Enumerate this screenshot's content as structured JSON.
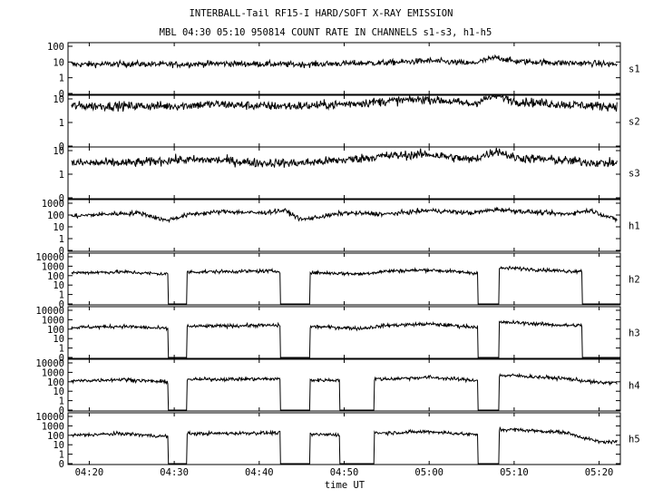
{
  "title": "INTERBALL-Tail RF15-I HARD/SOFT X-RAY EMISSION",
  "subtitle": "MBL 04:30 05:10 950814  COUNT RATE IN CHANNELS s1-s3, h1-h5",
  "xlabel": "time UT",
  "chart_data": {
    "type": "line",
    "title": "INTERBALL-Tail RF15-I HARD/SOFT X-RAY EMISSION",
    "subtitle": "MBL 04:30 05:10 950814  COUNT RATE IN CHANNELS s1-s3, h1-h5",
    "xlabel": "time UT",
    "xlim_minutes": [
      257.5,
      322.5
    ],
    "x_ticks": [
      "04:20",
      "04:30",
      "04:40",
      "04:50",
      "05:00",
      "05:10",
      "05:20"
    ],
    "x_tick_minutes": [
      260,
      270,
      280,
      290,
      300,
      310,
      320
    ],
    "y_scale": "log",
    "panels": [
      {
        "name": "s1",
        "y_ticks": [
          "100",
          "10",
          "1",
          "0"
        ],
        "y_tick_values": [
          100,
          10,
          1,
          0
        ],
        "series": [
          {
            "name": "s1",
            "t": [
              258,
              265,
              270,
              275,
              280,
              285,
              290,
              295,
              300,
              305,
              308,
              310,
              315,
              320,
              322
            ],
            "v": [
              7,
              7.5,
              7,
              8,
              7.5,
              7,
              8,
              9,
              12,
              8,
              20,
              11,
              9,
              8,
              7
            ]
          }
        ]
      },
      {
        "name": "s2",
        "y_ticks": [
          "10",
          "1",
          "0"
        ],
        "y_tick_values": [
          10,
          1,
          0
        ],
        "series": [
          {
            "name": "s2",
            "t": [
              258,
              265,
              270,
              275,
              280,
              285,
              290,
              295,
              300,
              305,
              308,
              310,
              315,
              320,
              322
            ],
            "v": [
              5,
              5,
              5,
              6,
              5,
              5,
              6,
              8,
              10,
              6,
              15,
              8,
              6,
              5,
              5
            ]
          }
        ]
      },
      {
        "name": "s3",
        "y_ticks": [
          "10",
          "1",
          "0"
        ],
        "y_tick_values": [
          10,
          1,
          0
        ],
        "series": [
          {
            "name": "s3",
            "t": [
              258,
              265,
              270,
              275,
              280,
              285,
              290,
              295,
              300,
              305,
              308,
              310,
              315,
              320,
              322
            ],
            "v": [
              3,
              3,
              4,
              4,
              3,
              3,
              4,
              6,
              7,
              4,
              10,
              5,
              4,
              3,
              3
            ]
          }
        ]
      },
      {
        "name": "h1",
        "y_ticks": [
          "1000",
          "100",
          "10",
          "1",
          "0"
        ],
        "y_tick_values": [
          1000,
          100,
          10,
          1,
          0
        ],
        "series": [
          {
            "name": "h1",
            "t": [
              258,
              262,
              266,
              269,
              272,
              276,
              280,
              283,
              285,
              290,
              295,
              300,
              305,
              308,
              312,
              316,
              319,
              322
            ],
            "v": [
              80,
              120,
              150,
              35,
              120,
              200,
              150,
              250,
              40,
              150,
              120,
              250,
              150,
              300,
              180,
              120,
              250,
              40
            ]
          }
        ]
      },
      {
        "name": "h2",
        "y_ticks": [
          "10000",
          "1000",
          "100",
          "10",
          "1",
          "0"
        ],
        "y_tick_values": [
          10000,
          1000,
          100,
          10,
          1,
          0
        ],
        "series": [
          {
            "name": "h2",
            "t": [
              258,
              264,
              268.5,
              270,
              273,
              280,
              285,
              287,
              292,
              295,
              300,
              305,
              306.5,
              310,
              316,
              320
            ],
            "v": [
              200,
              250,
              150,
              0,
              250,
              300,
              0,
              200,
              150,
              300,
              400,
              200,
              0,
              600,
              300,
              0
            ]
          }
        ]
      },
      {
        "name": "h3",
        "y_ticks": [
          "10000",
          "1000",
          "100",
          "10",
          "1",
          "0"
        ],
        "y_tick_values": [
          10000,
          1000,
          100,
          10,
          1,
          0
        ],
        "series": [
          {
            "name": "h3",
            "t": [
              258,
              264,
              268.5,
              270,
              273,
              280,
              285,
              287,
              292,
              295,
              300,
              305,
              306.5,
              310,
              316,
              320
            ],
            "v": [
              150,
              200,
              120,
              0,
              200,
              250,
              0,
              180,
              120,
              250,
              350,
              180,
              0,
              500,
              250,
              0
            ]
          }
        ]
      },
      {
        "name": "h4",
        "y_ticks": [
          "10000",
          "1000",
          "100",
          "10",
          "1",
          "0"
        ],
        "y_tick_values": [
          10000,
          1000,
          100,
          10,
          1,
          0
        ],
        "series": [
          {
            "name": "h4",
            "t": [
              258,
              264,
              268.5,
              270,
              273,
              280,
              285,
              287,
              292,
              295,
              300,
              305,
              306.5,
              310,
              316,
              320
            ],
            "v": [
              120,
              180,
              100,
              0,
              180,
              200,
              0,
              150,
              0,
              200,
              300,
              150,
              0,
              450,
              220,
              80
            ]
          }
        ]
      },
      {
        "name": "h5",
        "y_ticks": [
          "10000",
          "1000",
          "100",
          "10",
          "1",
          "0"
        ],
        "y_tick_values": [
          10000,
          1000,
          100,
          10,
          1,
          0
        ],
        "series": [
          {
            "name": "h5",
            "t": [
              258,
              264,
              268.5,
              270,
              273,
              280,
              285,
              287,
              292,
              295,
              300,
              305,
              306.5,
              310,
              316,
              320
            ],
            "v": [
              100,
              150,
              80,
              0,
              150,
              180,
              0,
              120,
              0,
              180,
              250,
              120,
              0,
              400,
              200,
              20
            ]
          }
        ]
      }
    ]
  }
}
